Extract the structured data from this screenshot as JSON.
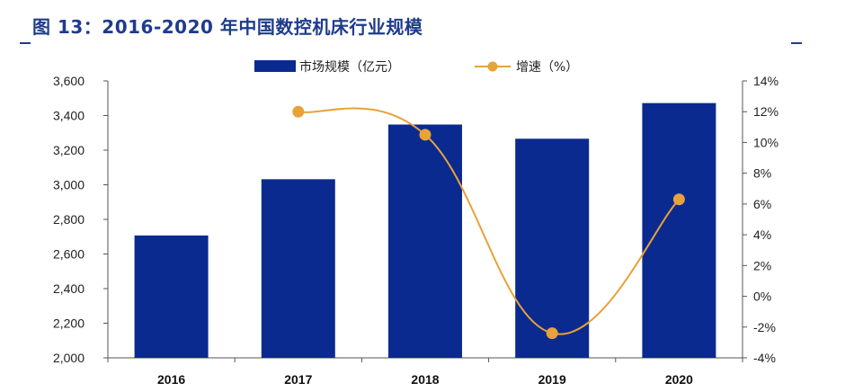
{
  "title": "图 13：2016-2020 年中国数控机床行业规模",
  "colors": {
    "bar": "#0b2a8f",
    "line": "#e8a23a",
    "title": "#1f3b8c"
  },
  "chart_data": {
    "type": "bar",
    "categories": [
      "2016",
      "2017",
      "2018",
      "2019",
      "2020"
    ],
    "series": [
      {
        "name": "市场规模（亿元）",
        "type": "bar",
        "axis": "left",
        "values": [
          2707,
          3032,
          3348,
          3266,
          3472
        ]
      },
      {
        "name": "增速（%）",
        "type": "line",
        "axis": "right",
        "values": [
          null,
          12.0,
          10.5,
          -2.4,
          6.3
        ]
      }
    ],
    "y_left": {
      "min": 2000,
      "max": 3600,
      "ticks": [
        "2,000",
        "2,200",
        "2,400",
        "2,600",
        "2,800",
        "3,000",
        "3,200",
        "3,400",
        "3,600"
      ]
    },
    "y_right": {
      "min": -4,
      "max": 14,
      "ticks": [
        "-4%",
        "-2%",
        "0%",
        "2%",
        "4%",
        "6%",
        "8%",
        "10%",
        "12%",
        "14%"
      ]
    },
    "legend_position": "top",
    "grid": false
  }
}
